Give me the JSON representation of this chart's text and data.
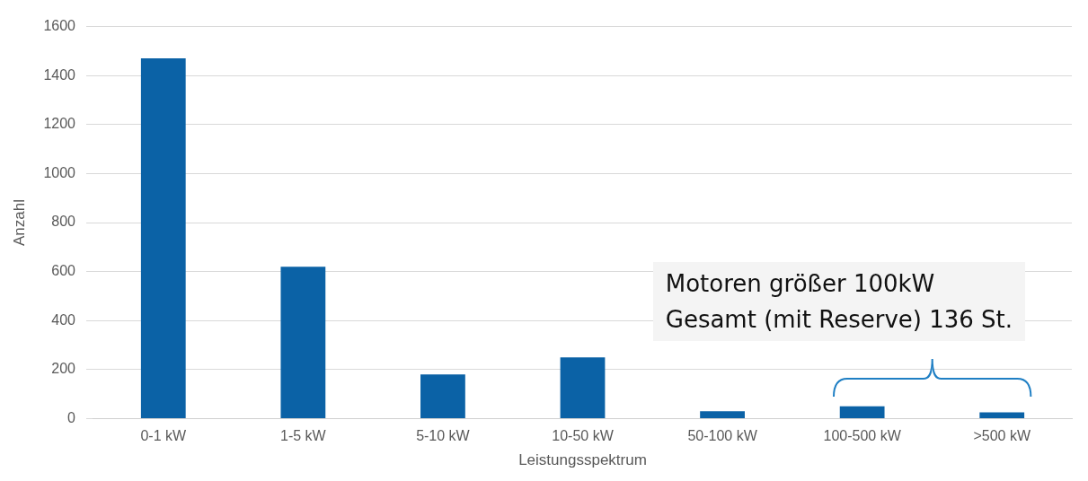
{
  "chart_data": {
    "type": "bar",
    "xlabel": "Leistungsspektrum",
    "ylabel": "Anzahl",
    "categories": [
      "0-1 kW",
      "1-5 kW",
      "5-10 kW",
      "10-50 kW",
      "50-100 kW",
      "100-500 kW",
      ">500 kW"
    ],
    "values": [
      1470,
      620,
      180,
      250,
      30,
      50,
      25
    ],
    "color": "#0b62a6",
    "ylim": [
      0,
      1600
    ],
    "yticks": [
      0,
      200,
      400,
      600,
      800,
      1000,
      1200,
      1400,
      1600
    ],
    "grid": "y",
    "annotations": [
      "Motoren größer 100kW",
      "Gesamt (mit Reserve) 136 St."
    ]
  }
}
